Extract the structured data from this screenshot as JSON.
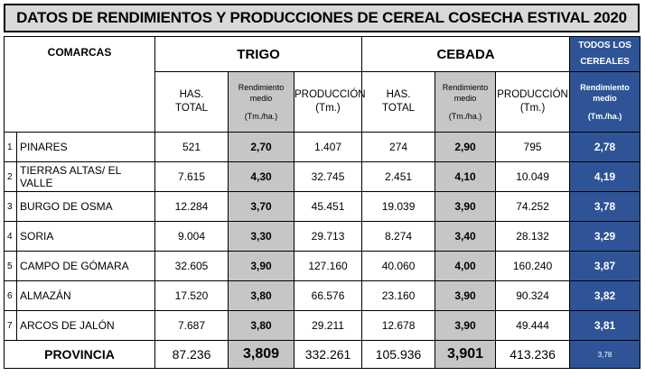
{
  "title": "DATOS DE RENDIMIENTOS Y PRODUCCIONES DE CEREAL COSECHA ESTIVAL 2020",
  "headers": {
    "comarcas": "COMARCAS",
    "trigo": "TRIGO",
    "cebada": "CEBADA",
    "todos_line1": "TODOS LOS",
    "todos_line2": "CEREALES",
    "has_line1": "HAS.",
    "has_line2": "TOTAL",
    "rend_line1": "Rendimiento",
    "rend_line2": "medio",
    "rend_unit": "(Tm./ha.)",
    "prod_line1": "PRODUCCIÓN",
    "prod_line2": "(Tm.)"
  },
  "rows": [
    {
      "num": "1",
      "name": "PINARES",
      "t_has": "521",
      "t_rend": "2,70",
      "t_prod": "1.407",
      "c_has": "274",
      "c_rend": "2,90",
      "c_prod": "795",
      "all_rend": "2,78"
    },
    {
      "num": "2",
      "name": "TIERRAS ALTAS/ EL VALLE",
      "t_has": "7.615",
      "t_rend": "4,30",
      "t_prod": "32.745",
      "c_has": "2.451",
      "c_rend": "4,10",
      "c_prod": "10.049",
      "all_rend": "4,19"
    },
    {
      "num": "3",
      "name": "BURGO DE OSMA",
      "t_has": "12.284",
      "t_rend": "3,70",
      "t_prod": "45.451",
      "c_has": "19.039",
      "c_rend": "3,90",
      "c_prod": "74.252",
      "all_rend": "3,78"
    },
    {
      "num": "4",
      "name": "SORIA",
      "t_has": "9.004",
      "t_rend": "3,30",
      "t_prod": "29.713",
      "c_has": "8.274",
      "c_rend": "3,40",
      "c_prod": "28.132",
      "all_rend": "3,29"
    },
    {
      "num": "5",
      "name": "CAMPO DE GÓMARA",
      "t_has": "32.605",
      "t_rend": "3,90",
      "t_prod": "127.160",
      "c_has": "40.060",
      "c_rend": "4,00",
      "c_prod": "160.240",
      "all_rend": "3,87"
    },
    {
      "num": "6",
      "name": "ALMAZÁN",
      "t_has": "17.520",
      "t_rend": "3,80",
      "t_prod": "66.576",
      "c_has": "23.160",
      "c_rend": "3,90",
      "c_prod": "90.324",
      "all_rend": "3,82"
    },
    {
      "num": "7",
      "name": "ARCOS DE JALÓN",
      "t_has": "7.687",
      "t_rend": "3,80",
      "t_prod": "29.211",
      "c_has": "12.678",
      "c_rend": "3,90",
      "c_prod": "49.444",
      "all_rend": "3,81"
    }
  ],
  "total": {
    "name": "PROVINCIA",
    "t_has": "87.236",
    "t_rend": "3,809",
    "t_prod": "332.261",
    "c_has": "105.936",
    "c_rend": "3,901",
    "c_prod": "413.236",
    "all_rend": "3,78"
  },
  "colors": {
    "grey": "#c6c6c6",
    "blue": "#2e5497"
  }
}
